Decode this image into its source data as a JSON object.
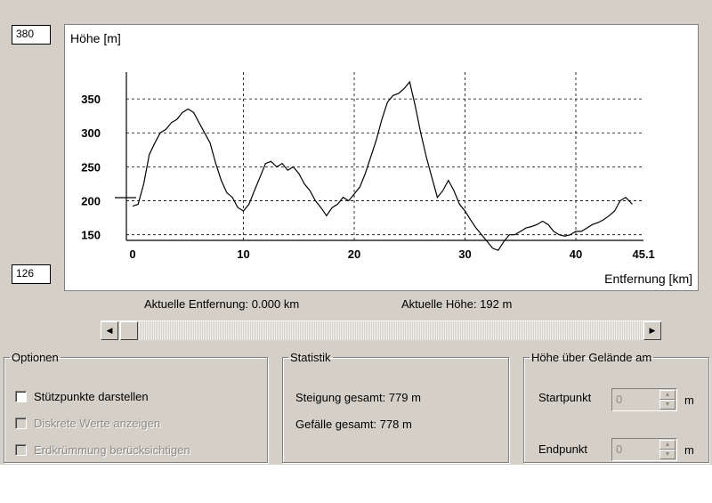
{
  "y_max_field": "380",
  "y_min_field": "126",
  "status": {
    "distance": "Aktuelle Entfernung: 0.000 km",
    "height": "Aktuelle Höhe: 192 m"
  },
  "scrollbar": {
    "left_arrow": "◀",
    "right_arrow": "▶"
  },
  "options": {
    "legend": "Optionen",
    "items": [
      {
        "label": "Stützpunkte darstellen",
        "checked": false,
        "enabled": true
      },
      {
        "label": "Diskrete Werte anzeigen",
        "checked": false,
        "enabled": false
      },
      {
        "label": "Erdkrümmung berücksichtigen",
        "checked": false,
        "enabled": false
      }
    ]
  },
  "statistik": {
    "legend": "Statistik",
    "ascent": "Steigung gesamt: 779 m",
    "descent": "Gefälle gesamt: 778 m"
  },
  "hoehe": {
    "legend": "Höhe über Gelände am",
    "start_label": "Startpunkt",
    "start_value": "0",
    "start_unit": "m",
    "end_label": "Endpunkt",
    "end_value": "0",
    "end_unit": "m"
  },
  "chart_data": {
    "type": "line",
    "ylabel": "Höhe [m]",
    "xlabel": "Entfernung [km]",
    "x_ticks": [
      "0",
      "10",
      "20",
      "30",
      "40",
      "45.1"
    ],
    "y_ticks": [
      "150",
      "200",
      "250",
      "300",
      "350"
    ],
    "xlim": [
      0,
      45.1
    ],
    "ylim": [
      126,
      380
    ],
    "grid": true,
    "series": [
      {
        "x": [
          0,
          0.5,
          1,
          1.5,
          2,
          2.5,
          3,
          3.5,
          4,
          4.5,
          5,
          5.5,
          6,
          6.5,
          7,
          7.5,
          8,
          8.5,
          9,
          9.5,
          10,
          10.5,
          11,
          11.5,
          12,
          12.5,
          13,
          13.5,
          14,
          14.5,
          15,
          15.5,
          16,
          16.5,
          17,
          17.5,
          18,
          18.5,
          19,
          19.5,
          20,
          20.5,
          21,
          21.5,
          22,
          22.5,
          23,
          23.5,
          24,
          24.5,
          25,
          25.5,
          26,
          26.5,
          27,
          27.5,
          28,
          28.5,
          29,
          29.5,
          30,
          30.5,
          31,
          31.5,
          32,
          32.5,
          33,
          33.5,
          34,
          34.5,
          35,
          35.5,
          36,
          36.5,
          37,
          37.5,
          38,
          38.5,
          39,
          39.5,
          40,
          40.5,
          41,
          41.5,
          42,
          42.5,
          43,
          43.5,
          44,
          44.5,
          45.1
        ],
        "values": [
          192,
          195,
          225,
          268,
          285,
          300,
          305,
          315,
          320,
          330,
          335,
          330,
          315,
          300,
          285,
          255,
          230,
          212,
          205,
          190,
          185,
          195,
          215,
          235,
          255,
          258,
          250,
          255,
          245,
          250,
          240,
          225,
          215,
          200,
          190,
          178,
          190,
          195,
          205,
          200,
          210,
          220,
          240,
          265,
          290,
          320,
          345,
          355,
          358,
          365,
          375,
          340,
          300,
          265,
          235,
          205,
          215,
          230,
          215,
          195,
          185,
          172,
          160,
          150,
          140,
          130,
          127,
          140,
          150,
          150,
          155,
          160,
          162,
          165,
          170,
          165,
          155,
          150,
          148,
          150,
          155,
          155,
          160,
          165,
          168,
          172,
          178,
          185,
          200,
          205,
          195
        ]
      }
    ]
  }
}
